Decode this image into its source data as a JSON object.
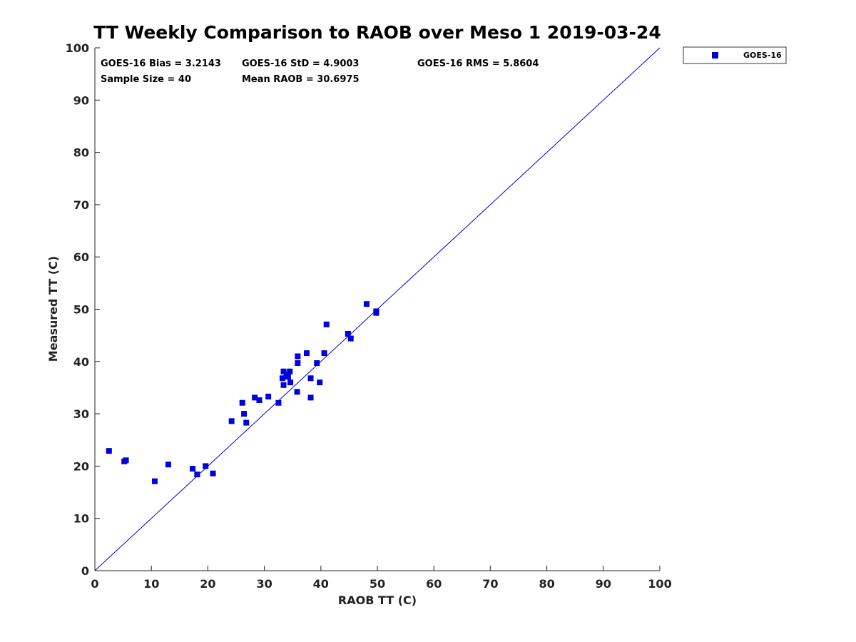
{
  "chart_data": {
    "type": "scatter",
    "title": "TT Weekly Comparison to RAOB over Meso 1 2019-03-24",
    "xlabel": "RAOB TT (C)",
    "ylabel": "Measured TT (C)",
    "xlim": [
      0,
      100
    ],
    "ylim": [
      0,
      100
    ],
    "xticks": [
      "0",
      "10",
      "20",
      "30",
      "40",
      "50",
      "60",
      "70",
      "80",
      "90",
      "100"
    ],
    "yticks": [
      "0",
      "10",
      "20",
      "30",
      "40",
      "50",
      "60",
      "70",
      "80",
      "90",
      "100"
    ],
    "grid": false,
    "reference_line": {
      "x": [
        0,
        100
      ],
      "y": [
        0,
        100
      ],
      "color": "#0000cc"
    },
    "legend": {
      "position": "outside-top-right",
      "entries": [
        "GOES-16"
      ]
    },
    "stats": {
      "bias": "GOES-16 Bias = 3.2143",
      "std": "GOES-16 StD = 4.9003",
      "rms": "GOES-16 RMS = 5.8604",
      "sample": "Sample Size = 40",
      "mean": "Mean RAOB = 30.6975"
    },
    "series": [
      {
        "name": "GOES-16",
        "color": "#0000dd",
        "marker": "square",
        "points": [
          [
            2.5,
            22.9
          ],
          [
            5.2,
            20.9
          ],
          [
            5.5,
            21.1
          ],
          [
            10.6,
            17.1
          ],
          [
            13.0,
            20.3
          ],
          [
            17.3,
            19.5
          ],
          [
            18.1,
            18.4
          ],
          [
            19.6,
            20.0
          ],
          [
            20.9,
            18.6
          ],
          [
            24.2,
            28.6
          ],
          [
            26.1,
            32.1
          ],
          [
            26.4,
            30.0
          ],
          [
            26.8,
            28.3
          ],
          [
            28.3,
            33.1
          ],
          [
            29.1,
            32.6
          ],
          [
            30.7,
            33.3
          ],
          [
            32.5,
            32.1
          ],
          [
            33.2,
            36.8
          ],
          [
            33.4,
            38.1
          ],
          [
            33.4,
            35.5
          ],
          [
            33.9,
            37.6
          ],
          [
            34.2,
            37.1
          ],
          [
            34.5,
            38.1
          ],
          [
            34.6,
            36.0
          ],
          [
            35.8,
            34.2
          ],
          [
            35.9,
            39.7
          ],
          [
            35.9,
            41.0
          ],
          [
            37.5,
            41.6
          ],
          [
            38.2,
            36.8
          ],
          [
            38.2,
            33.1
          ],
          [
            39.3,
            39.7
          ],
          [
            39.8,
            36.0
          ],
          [
            40.6,
            41.6
          ],
          [
            41.0,
            47.1
          ],
          [
            44.8,
            45.3
          ],
          [
            45.3,
            44.4
          ],
          [
            48.1,
            51.0
          ],
          [
            49.8,
            49.3
          ],
          [
            49.8,
            49.6
          ],
          [
            34.0,
            37.4
          ]
        ]
      }
    ]
  }
}
